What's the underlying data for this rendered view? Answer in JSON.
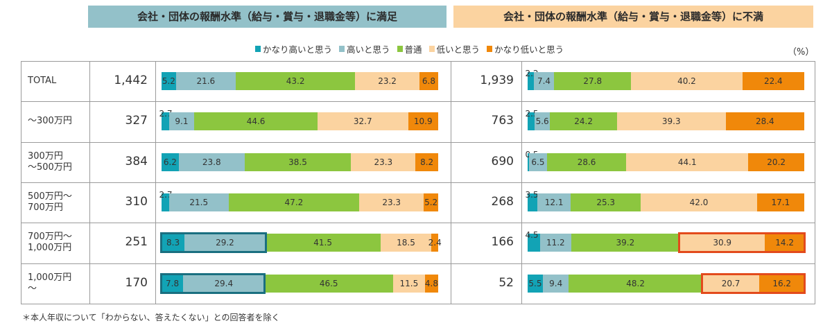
{
  "panels": {
    "left_title": "会社・団体の報酬水準（給与・賞与・退職金等）に満足",
    "right_title": "会社・団体の報酬水準（給与・賞与・退職金等）に不満"
  },
  "unit_label": "（%）",
  "footnote": "＊本人年収について「わからない、答えたくない」との回答者を除く",
  "colors": {
    "very_high": "#12a3b5",
    "high": "#93c1c9",
    "normal": "#8cc63f",
    "low": "#fbd3a0",
    "very_low": "#f0880a",
    "highlight_left": "#1a6f80",
    "highlight_right": "#e34a1c"
  },
  "chart_data": {
    "type": "bar",
    "orientation": "horizontal",
    "stacked": true,
    "xlim": [
      0,
      100
    ],
    "series": [
      {
        "name": "かなり高いと思う",
        "key": "very_high"
      },
      {
        "name": "高いと思う",
        "key": "high"
      },
      {
        "name": "普通",
        "key": "normal"
      },
      {
        "name": "低いと思う",
        "key": "low"
      },
      {
        "name": "かなり低いと思う",
        "key": "very_low"
      }
    ],
    "categories": [
      "TOTAL",
      "～300万円",
      "300万円\n～500万円",
      "500万円～\n700万円",
      "700万円～\n1,000万円",
      "1,000万円\n～"
    ],
    "groups": [
      {
        "name": "満足",
        "counts": [
          "1,442",
          "327",
          "384",
          "310",
          "251",
          "170"
        ],
        "values": [
          [
            5.2,
            21.6,
            43.2,
            23.2,
            6.8
          ],
          [
            2.7,
            9.1,
            44.6,
            32.7,
            10.9
          ],
          [
            6.2,
            23.8,
            38.5,
            23.3,
            8.2
          ],
          [
            2.7,
            21.5,
            47.2,
            23.3,
            5.2
          ],
          [
            8.3,
            29.2,
            41.5,
            18.5,
            2.4
          ],
          [
            7.8,
            29.4,
            46.5,
            11.5,
            4.8
          ]
        ],
        "highlighted_rows": [
          4,
          5
        ],
        "highlighted_segments": [
          0,
          1
        ]
      },
      {
        "name": "不満",
        "counts": [
          "1,939",
          "763",
          "690",
          "268",
          "166",
          "52"
        ],
        "values": [
          [
            2.2,
            7.4,
            27.8,
            40.2,
            22.4
          ],
          [
            2.5,
            5.6,
            24.2,
            39.3,
            28.4
          ],
          [
            0.5,
            6.5,
            28.6,
            44.1,
            20.2
          ],
          [
            3.5,
            12.1,
            25.3,
            42.0,
            17.1
          ],
          [
            4.5,
            11.2,
            39.2,
            30.9,
            14.2
          ],
          [
            5.5,
            9.4,
            48.2,
            20.7,
            16.2
          ]
        ],
        "highlighted_rows": [
          4,
          5
        ],
        "highlighted_segments": [
          3,
          4
        ]
      }
    ]
  }
}
